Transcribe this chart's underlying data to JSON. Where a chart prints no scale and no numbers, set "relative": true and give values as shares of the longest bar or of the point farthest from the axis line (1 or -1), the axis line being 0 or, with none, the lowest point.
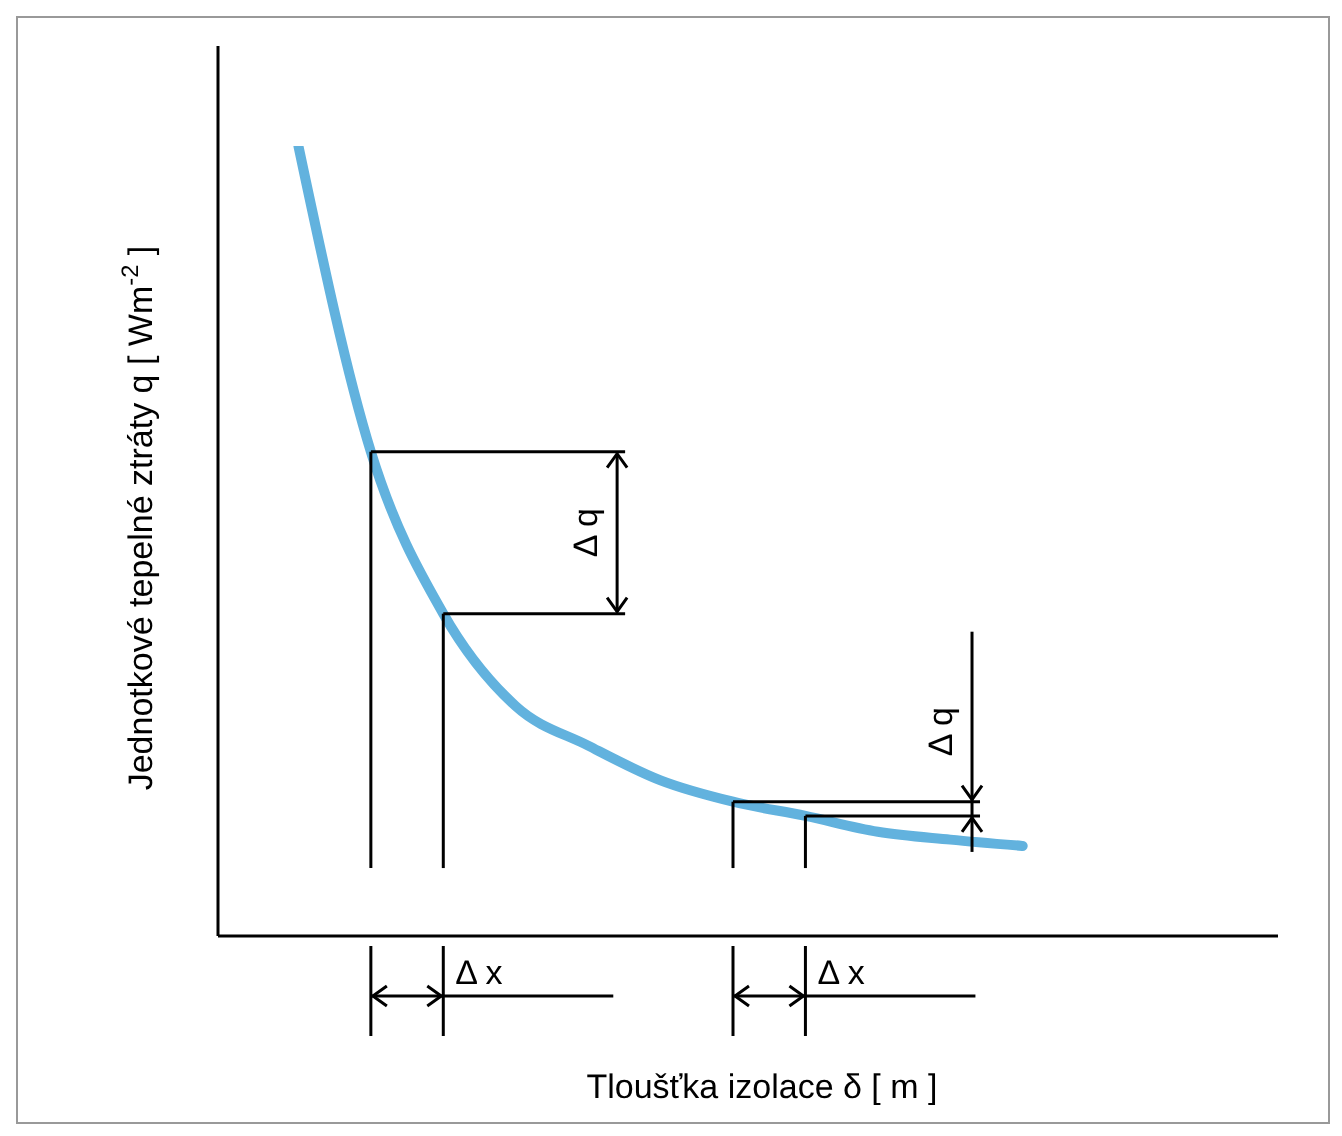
{
  "chart_data": {
    "type": "line",
    "relative": true,
    "xlabel": "Tloušťka izolace δ [ m ]",
    "ylabel": "Jednotkové tepelné ztráty q [ Wm$^{-2}$ ]",
    "categories": [
      null,
      null,
      null,
      null,
      null,
      null,
      null,
      null,
      null,
      null,
      null,
      null,
      null,
      null,
      null
    ],
    "series": [
      {
        "color": "#62b2de",
        "values": [
          null,
          1.0,
          0.613,
          0.408,
          0.291,
          0.241,
          0.197,
          0.17,
          0.152,
          0.132,
          0.122,
          0.114,
          null,
          null,
          null
        ]
      }
    ],
    "annotations": [
      "Δ q",
      "Δ x",
      "Δ q",
      "Δ x"
    ],
    "marker": "none",
    "grid": false,
    "legend": false
  }
}
